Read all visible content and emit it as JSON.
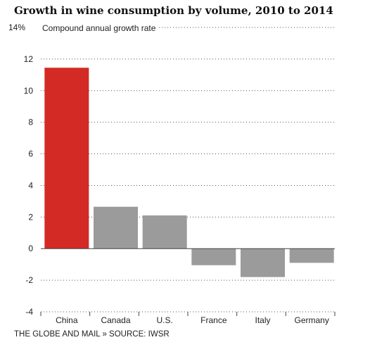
{
  "chart_data": {
    "type": "bar",
    "title": "Growth in wine consumption by volume, 2010 to 2014",
    "ylabel": "Compound annual growth rate",
    "y_top_label": "14%",
    "categories": [
      "China",
      "Canada",
      "U.S.",
      "France",
      "Italy",
      "Germany"
    ],
    "values": [
      11.45,
      2.65,
      2.1,
      -1.05,
      -1.8,
      -0.9
    ],
    "yticks": [
      -4,
      -2,
      0,
      2,
      4,
      6,
      8,
      10,
      12,
      14
    ],
    "ylim": [
      -4,
      14
    ],
    "grid": true,
    "highlight_color": "#d32a25",
    "bar_color": "#9b9b9b",
    "source": "THE GLOBE AND MAIL » SOURCE: IWSR"
  }
}
